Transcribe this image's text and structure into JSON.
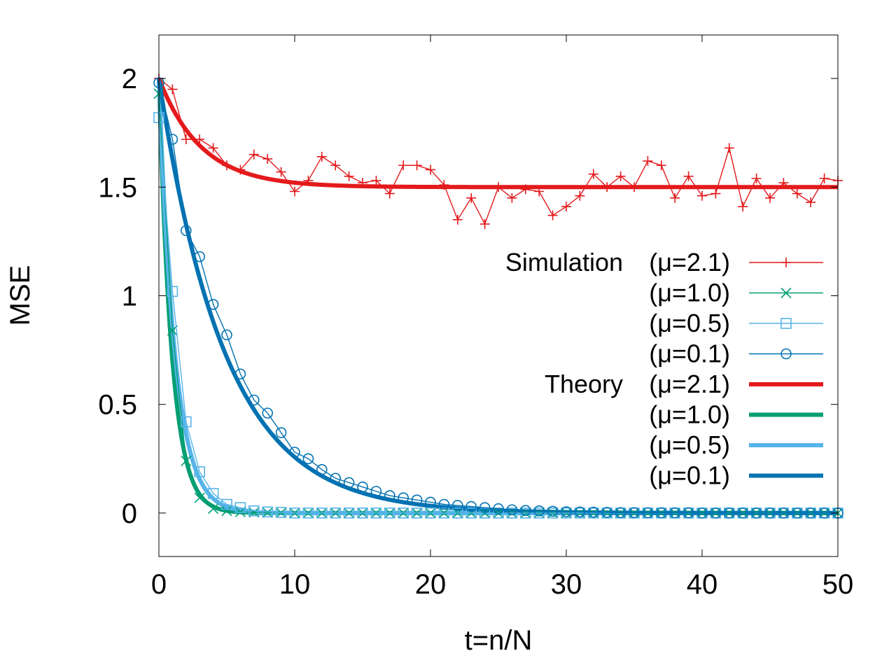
{
  "chart_data": {
    "type": "line",
    "title": "",
    "xlabel": "t=n/N",
    "ylabel": "MSE",
    "xlim": [
      0,
      50
    ],
    "ylim": [
      -0.2,
      2.2
    ],
    "xticks": [
      0,
      10,
      20,
      30,
      40,
      50
    ],
    "xtick_labels": [
      "0",
      "10",
      "20",
      "30",
      "40",
      "50"
    ],
    "yticks": [
      0,
      0.5,
      1,
      1.5,
      2
    ],
    "ytick_labels": [
      "0",
      "0.5",
      "1",
      "1.5",
      "2"
    ],
    "grid": false,
    "legend_position": "right",
    "simulation_series": [
      {
        "name": "Simulation (μ=2.1)",
        "legend_prefix": "Simulation",
        "legend_param": "(μ=2.1)",
        "color": "#e41a1c",
        "marker": "plus",
        "x": [
          0,
          1,
          2,
          3,
          4,
          5,
          6,
          7,
          8,
          9,
          10,
          11,
          12,
          13,
          14,
          15,
          16,
          17,
          18,
          19,
          20,
          21,
          22,
          23,
          24,
          25,
          26,
          27,
          28,
          29,
          30,
          31,
          32,
          33,
          34,
          35,
          36,
          37,
          38,
          39,
          40,
          41,
          42,
          43,
          44,
          45,
          46,
          47,
          48,
          49,
          50
        ],
        "values": [
          2.0,
          1.95,
          1.72,
          1.72,
          1.68,
          1.6,
          1.58,
          1.65,
          1.63,
          1.57,
          1.48,
          1.53,
          1.64,
          1.6,
          1.55,
          1.52,
          1.53,
          1.47,
          1.6,
          1.6,
          1.58,
          1.51,
          1.35,
          1.45,
          1.33,
          1.5,
          1.45,
          1.49,
          1.48,
          1.37,
          1.41,
          1.46,
          1.56,
          1.5,
          1.55,
          1.5,
          1.62,
          1.6,
          1.45,
          1.55,
          1.46,
          1.47,
          1.68,
          1.41,
          1.54,
          1.45,
          1.52,
          1.47,
          1.43,
          1.54,
          1.53
        ]
      },
      {
        "name": "(μ=1.0)",
        "legend_prefix": "",
        "legend_param": "(μ=1.0)",
        "color": "#009e73",
        "marker": "cross",
        "x": [
          0,
          1,
          2,
          3,
          4,
          5,
          6,
          7,
          8,
          9,
          10,
          11,
          12,
          13,
          14,
          15,
          16,
          17,
          18,
          19,
          20,
          21,
          22,
          23,
          24,
          25,
          26,
          27,
          28,
          29,
          30,
          31,
          32,
          33,
          34,
          35,
          36,
          37,
          38,
          39,
          40,
          41,
          42,
          43,
          44,
          45,
          46,
          47,
          48,
          49,
          50
        ],
        "values": [
          1.93,
          0.84,
          0.24,
          0.07,
          0.02,
          0.01,
          0.005,
          0.003,
          0.002,
          0.001,
          0,
          0,
          0,
          0,
          0,
          0,
          0,
          0,
          0,
          0,
          0,
          0,
          0,
          0,
          0,
          0,
          0,
          0,
          0,
          0,
          0,
          0,
          0,
          0,
          0,
          0,
          0,
          0,
          0,
          0,
          0,
          0,
          0,
          0,
          0,
          0,
          0,
          0,
          0,
          0,
          0
        ]
      },
      {
        "name": "(μ=0.5)",
        "legend_prefix": "",
        "legend_param": "(μ=0.5)",
        "color": "#56b4e9",
        "marker": "square",
        "x": [
          0,
          1,
          2,
          3,
          4,
          5,
          6,
          7,
          8,
          9,
          10,
          11,
          12,
          13,
          14,
          15,
          16,
          17,
          18,
          19,
          20,
          21,
          22,
          23,
          24,
          25,
          26,
          27,
          28,
          29,
          30,
          31,
          32,
          33,
          34,
          35,
          36,
          37,
          38,
          39,
          40,
          41,
          42,
          43,
          44,
          45,
          46,
          47,
          48,
          49,
          50
        ],
        "values": [
          1.82,
          1.02,
          0.42,
          0.19,
          0.09,
          0.04,
          0.025,
          0.01,
          0.005,
          0.003,
          0,
          0,
          0,
          0,
          0,
          0,
          0,
          0,
          0,
          0,
          0,
          0,
          0,
          0,
          0,
          0,
          0,
          0,
          0,
          0,
          0,
          0,
          0,
          0,
          0,
          0,
          0,
          0,
          0,
          0,
          0,
          0,
          0,
          0,
          0,
          0,
          0,
          0,
          0,
          0,
          0
        ]
      },
      {
        "name": "(μ=0.1)",
        "legend_prefix": "",
        "legend_param": "(μ=0.1)",
        "color": "#0072b2",
        "marker": "circle",
        "x": [
          0,
          1,
          2,
          3,
          4,
          5,
          6,
          7,
          8,
          9,
          10,
          11,
          12,
          13,
          14,
          15,
          16,
          17,
          18,
          19,
          20,
          21,
          22,
          23,
          24,
          25,
          26,
          27,
          28,
          29,
          30,
          31,
          32,
          33,
          34,
          35,
          36,
          37,
          38,
          39,
          40,
          41,
          42,
          43,
          44,
          45,
          46,
          47,
          48,
          49,
          50
        ],
        "values": [
          1.98,
          1.72,
          1.3,
          1.18,
          0.96,
          0.82,
          0.64,
          0.52,
          0.46,
          0.37,
          0.28,
          0.25,
          0.2,
          0.16,
          0.14,
          0.12,
          0.1,
          0.08,
          0.07,
          0.06,
          0.05,
          0.04,
          0.035,
          0.03,
          0.025,
          0.02,
          0.015,
          0.012,
          0.01,
          0.008,
          0.006,
          0.005,
          0.004,
          0.003,
          0.002,
          0.002,
          0.001,
          0.001,
          0.001,
          0.001,
          0,
          0,
          0,
          0,
          0,
          0,
          0,
          0,
          0,
          0,
          0
        ]
      }
    ],
    "theory_series": [
      {
        "name": "Theory (μ=2.1)",
        "legend_prefix": "Theory",
        "legend_param": "(μ=2.1)",
        "color": "#e41a1c",
        "mu": 2.1,
        "start": 2.0,
        "asymptote": 1.5,
        "rate": 0.32
      },
      {
        "name": "(μ=1.0)",
        "legend_prefix": "",
        "legend_param": "(μ=1.0)",
        "color": "#009e73",
        "mu": 1.0,
        "start": 2.0,
        "asymptote": 0,
        "rate": 1.05
      },
      {
        "name": "(μ=0.5)",
        "legend_prefix": "",
        "legend_param": "(μ=0.5)",
        "color": "#56b4e9",
        "mu": 0.5,
        "start": 2.0,
        "asymptote": 0,
        "rate": 0.85
      },
      {
        "name": "(μ=0.1)",
        "legend_prefix": "",
        "legend_param": "(μ=0.1)",
        "color": "#0072b2",
        "mu": 0.1,
        "start": 2.0,
        "asymptote": 0,
        "rate": 0.205
      }
    ]
  }
}
